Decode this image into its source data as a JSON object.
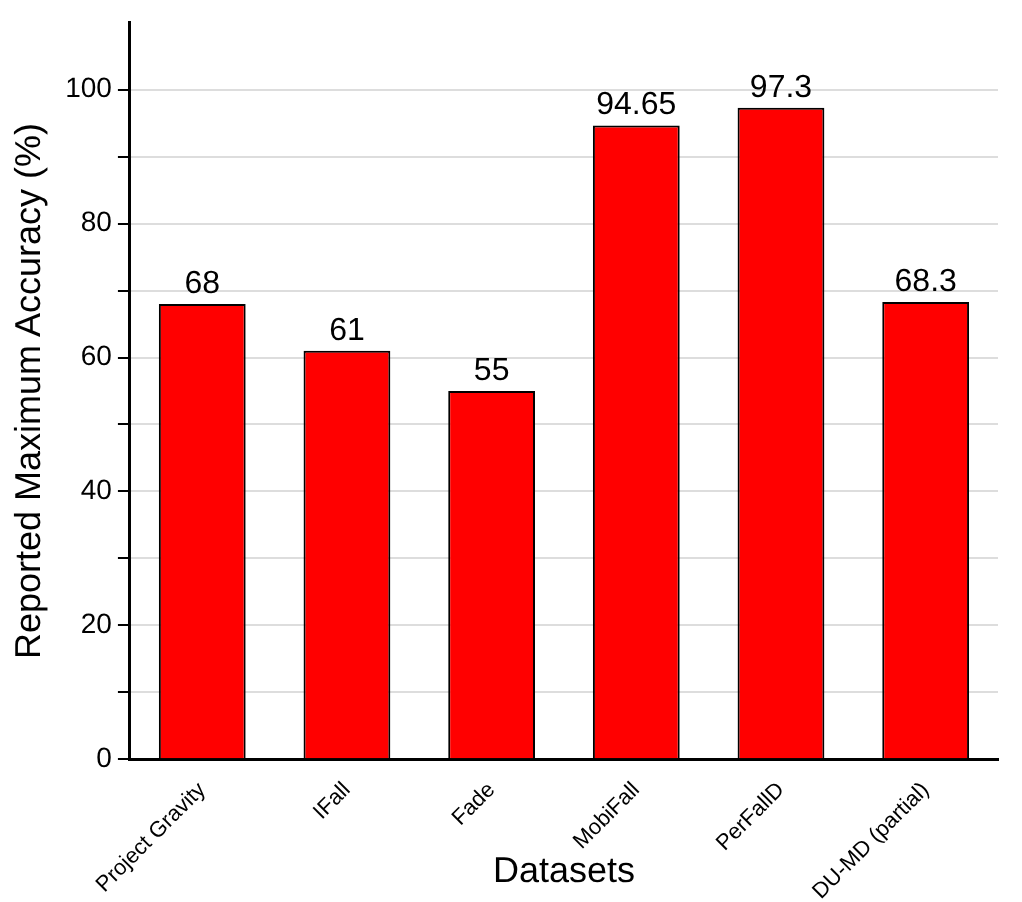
{
  "chart_data": {
    "type": "bar",
    "xlabel": "Datasets",
    "ylabel": "Reported Maximum Accuracy (%)",
    "categories": [
      "Project Gravity",
      "IFall",
      "Fade",
      "MobiFall",
      "PerFallD",
      "DU-MD (partial)"
    ],
    "values": [
      68,
      61,
      55,
      94.65,
      97.3,
      68.3
    ],
    "color": "#ff0000",
    "ylim": [
      0,
      110
    ],
    "yticks": [
      0,
      {
        "value": 10,
        "label": null
      },
      20,
      {
        "value": 30,
        "label": null
      },
      40,
      {
        "value": 50,
        "label": null
      },
      60,
      {
        "value": 70,
        "label": null
      },
      80,
      {
        "value": 90,
        "label": null
      },
      100
    ],
    "grid": "y",
    "data_labels": true
  }
}
